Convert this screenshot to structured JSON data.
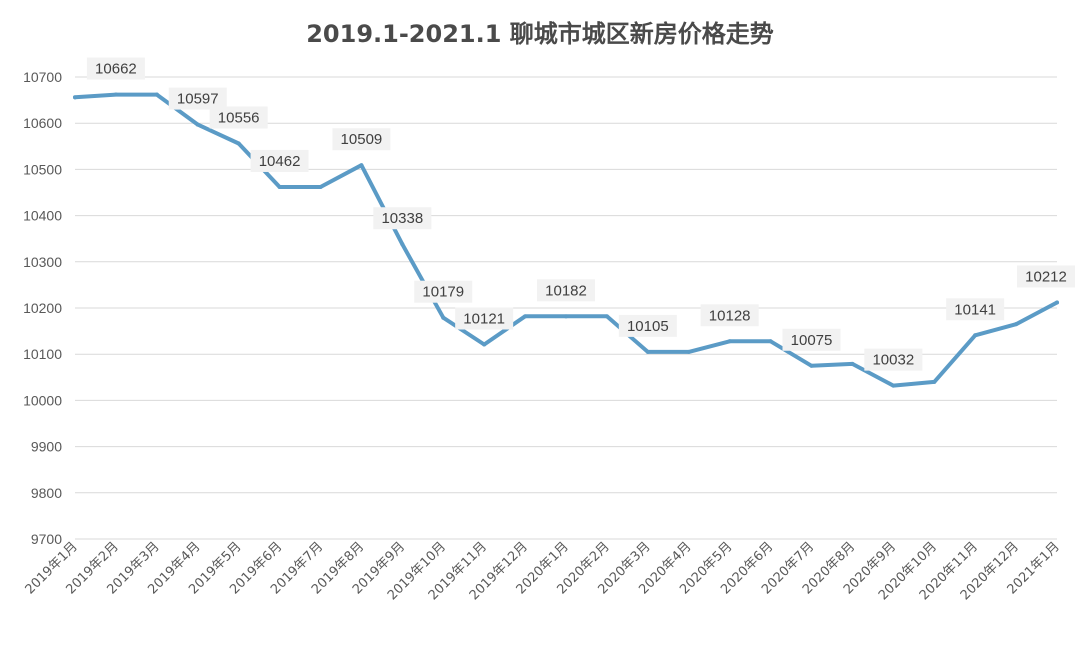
{
  "chart_data": {
    "type": "line",
    "title": "2019.1-2021.1 聊城市城区新房价格走势",
    "xlabel": "",
    "ylabel": "",
    "ylim": [
      9700,
      10700
    ],
    "yticks": [
      9700,
      9800,
      9900,
      10000,
      10100,
      10200,
      10300,
      10400,
      10500,
      10600,
      10700
    ],
    "grid": true,
    "legend": "none",
    "x": [
      "2019年1月",
      "2019年2月",
      "2019年3月",
      "2019年4月",
      "2019年5月",
      "2019年6月",
      "2019年7月",
      "2019年8月",
      "2019年9月",
      "2019年10月",
      "2019年11月",
      "2019年12月",
      "2020年1月",
      "2020年2月",
      "2020年3月",
      "2020年4月",
      "2020年5月",
      "2020年6月",
      "2020年7月",
      "2020年8月",
      "2020年9月",
      "2020年10月",
      "2020年11月",
      "2020年12月",
      "2021年1月"
    ],
    "series": [
      {
        "values": [
          10656,
          10662,
          10662,
          10597,
          10556,
          10462,
          10462,
          10509,
          10338,
          10179,
          10121,
          10182,
          10182,
          10182,
          10105,
          10105,
          10128,
          10128,
          10075,
          10079,
          10032,
          10040,
          10141,
          10165,
          10212
        ],
        "color": "#5b9bc6"
      }
    ],
    "data_labels": [
      {
        "index": 1,
        "text": "10662"
      },
      {
        "index": 3,
        "text": "10597"
      },
      {
        "index": 4,
        "text": "10556"
      },
      {
        "index": 5,
        "text": "10462"
      },
      {
        "index": 7,
        "text": "10509"
      },
      {
        "index": 8,
        "text": "10338"
      },
      {
        "index": 9,
        "text": "10179"
      },
      {
        "index": 10,
        "text": "10121"
      },
      {
        "index": 12,
        "text": "10182"
      },
      {
        "index": 14,
        "text": "10105"
      },
      {
        "index": 16,
        "text": "10128"
      },
      {
        "index": 18,
        "text": "10075"
      },
      {
        "index": 20,
        "text": "10032"
      },
      {
        "index": 22,
        "text": "10141"
      },
      {
        "index": 24,
        "text": "10212"
      }
    ]
  },
  "colors": {
    "line": "#5b9bc6",
    "grid": "#d9d9d9",
    "axis_text": "#595959",
    "label_bg": "#f2f2f2",
    "label_text": "#404040"
  }
}
